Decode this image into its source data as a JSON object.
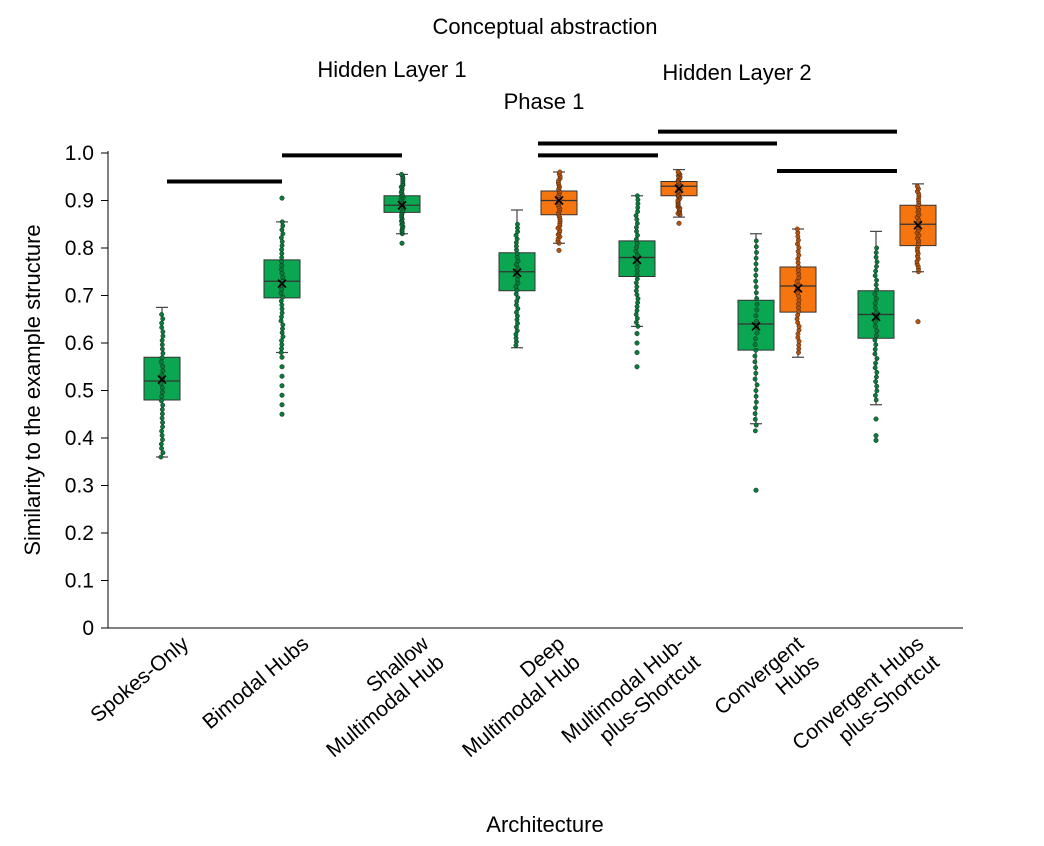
{
  "chart_data": {
    "type": "box",
    "title": "Conceptual abstraction",
    "subtitle": "Phase 1",
    "xlabel": "Architecture",
    "ylabel": "Similarity to the example structure",
    "ylim": [
      0,
      1.0
    ],
    "yticks": [
      "0",
      "0.1",
      "0.2",
      "0.3",
      "0.4",
      "0.5",
      "0.6",
      "0.7",
      "0.8",
      "0.9",
      "1.0"
    ],
    "legend_position": "top",
    "series": [
      {
        "name": "Hidden Layer 1",
        "color": "#0aa651"
      },
      {
        "name": "Hidden Layer 2",
        "color": "#f7750e"
      }
    ],
    "categories": [
      {
        "lines": [
          "Spokes-Only"
        ]
      },
      {
        "lines": [
          "Bimodal Hubs"
        ]
      },
      {
        "lines": [
          "Shallow",
          "Multimodal Hub"
        ]
      },
      {
        "lines": [
          "Deep",
          "Multimodal Hub"
        ]
      },
      {
        "lines": [
          "Multimodal Hub-",
          "plus-Shortcut"
        ]
      },
      {
        "lines": [
          "Convergent",
          "Hubs"
        ]
      },
      {
        "lines": [
          "Convergent Hubs",
          "plus-Shortcut"
        ]
      }
    ],
    "boxes": [
      {
        "category": 0,
        "series": 0,
        "whisker_low": 0.36,
        "q1": 0.48,
        "median": 0.52,
        "mean": 0.523,
        "q3": 0.57,
        "whisker_high": 0.675,
        "outliers": [],
        "points_range": [
          0.36,
          0.66
        ]
      },
      {
        "category": 1,
        "series": 0,
        "whisker_low": 0.58,
        "q1": 0.695,
        "median": 0.73,
        "mean": 0.725,
        "q3": 0.775,
        "whisker_high": 0.855,
        "outliers": [
          0.45,
          0.47,
          0.49,
          0.51,
          0.53,
          0.55,
          0.57,
          0.905
        ],
        "points_range": [
          0.58,
          0.855
        ]
      },
      {
        "category": 2,
        "series": 0,
        "whisker_low": 0.83,
        "q1": 0.875,
        "median": 0.89,
        "mean": 0.89,
        "q3": 0.91,
        "whisker_high": 0.955,
        "outliers": [
          0.81
        ],
        "points_range": [
          0.83,
          0.955
        ]
      },
      {
        "category": 3,
        "series": 0,
        "whisker_low": 0.59,
        "q1": 0.71,
        "median": 0.75,
        "mean": 0.748,
        "q3": 0.79,
        "whisker_high": 0.88,
        "outliers": [],
        "points_range": [
          0.595,
          0.85
        ]
      },
      {
        "category": 3,
        "series": 1,
        "whisker_low": 0.81,
        "q1": 0.87,
        "median": 0.9,
        "mean": 0.9,
        "q3": 0.92,
        "whisker_high": 0.96,
        "outliers": [
          0.795
        ],
        "points_range": [
          0.81,
          0.96
        ]
      },
      {
        "category": 4,
        "series": 0,
        "whisker_low": 0.635,
        "q1": 0.74,
        "median": 0.78,
        "mean": 0.775,
        "q3": 0.815,
        "whisker_high": 0.91,
        "outliers": [
          0.55,
          0.58,
          0.6,
          0.62
        ],
        "points_range": [
          0.635,
          0.91
        ]
      },
      {
        "category": 4,
        "series": 1,
        "whisker_low": 0.865,
        "q1": 0.91,
        "median": 0.93,
        "mean": 0.925,
        "q3": 0.94,
        "whisker_high": 0.965,
        "outliers": [
          0.852
        ],
        "points_range": [
          0.87,
          0.96
        ]
      },
      {
        "category": 5,
        "series": 0,
        "whisker_low": 0.43,
        "q1": 0.585,
        "median": 0.64,
        "mean": 0.635,
        "q3": 0.69,
        "whisker_high": 0.83,
        "outliers": [
          0.29
        ],
        "points_range": [
          0.415,
          0.815
        ]
      },
      {
        "category": 5,
        "series": 1,
        "whisker_low": 0.57,
        "q1": 0.665,
        "median": 0.72,
        "mean": 0.715,
        "q3": 0.76,
        "whisker_high": 0.84,
        "outliers": [],
        "points_range": [
          0.58,
          0.84
        ]
      },
      {
        "category": 6,
        "series": 0,
        "whisker_low": 0.47,
        "q1": 0.61,
        "median": 0.66,
        "mean": 0.655,
        "q3": 0.71,
        "whisker_high": 0.835,
        "outliers": [
          0.395,
          0.405,
          0.44
        ],
        "points_range": [
          0.48,
          0.8
        ]
      },
      {
        "category": 6,
        "series": 1,
        "whisker_low": 0.75,
        "q1": 0.805,
        "median": 0.85,
        "mean": 0.848,
        "q3": 0.89,
        "whisker_high": 0.935,
        "outliers": [
          0.645
        ],
        "points_range": [
          0.75,
          0.93
        ]
      }
    ],
    "significance_bars": [
      {
        "from_category": 0,
        "to_category": 1,
        "y": 0.94
      },
      {
        "from_category": 1,
        "to_category": 2,
        "y": 0.995
      },
      {
        "from_category": 3,
        "to_category": 4,
        "y": 0.995
      },
      {
        "from_category": 3,
        "to_category": 5,
        "y": 1.02
      },
      {
        "from_category": 4,
        "to_category": 6,
        "y": 1.045
      },
      {
        "from_category": 5,
        "to_category": 6,
        "y": 0.962
      }
    ]
  }
}
